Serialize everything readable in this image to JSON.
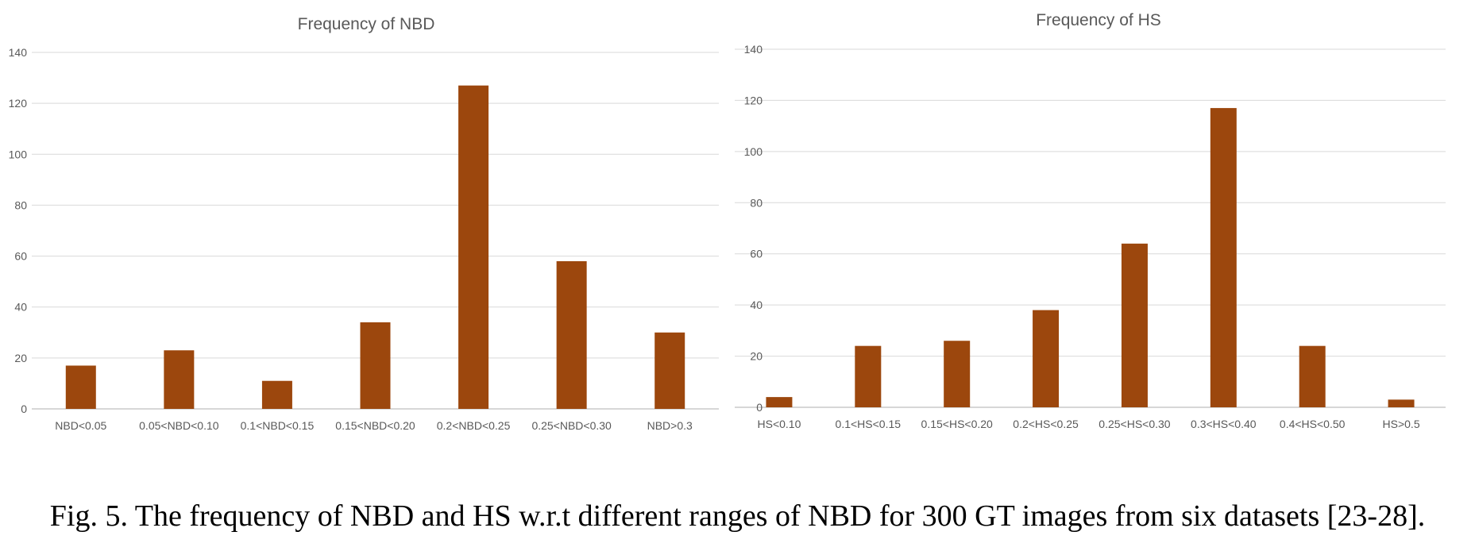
{
  "colors": {
    "bar": "#9C470D",
    "grid": "#d9d9d9",
    "text": "#595959"
  },
  "chart_data": [
    {
      "type": "bar",
      "title": "Frequency of NBD",
      "xlabel": "",
      "ylabel": "",
      "categories": [
        "NBD<0.05",
        "0.05<NBD<0.10",
        "0.1<NBD<0.15",
        "0.15<NBD<0.20",
        "0.2<NBD<0.25",
        "0.25<NBD<0.30",
        "NBD>0.3"
      ],
      "values": [
        17,
        23,
        11,
        34,
        127,
        58,
        30
      ],
      "ylim": [
        0,
        140
      ],
      "yticks": [
        "0",
        "20",
        "40",
        "60",
        "80",
        "100",
        "120",
        "140"
      ],
      "grid": true,
      "legend": "none"
    },
    {
      "type": "bar",
      "title": "Frequency of HS",
      "xlabel": "",
      "ylabel": "",
      "categories": [
        "HS<0.10",
        "0.1<HS<0.15",
        "0.15<HS<0.20",
        "0.2<HS<0.25",
        "0.25<HS<0.30",
        "0.3<HS<0.40",
        "0.4<HS<0.50",
        "HS>0.5"
      ],
      "values": [
        4,
        24,
        26,
        38,
        64,
        117,
        24,
        3
      ],
      "ylim": [
        0,
        140
      ],
      "yticks": [
        "0",
        "20",
        "40",
        "60",
        "80",
        "100",
        "120",
        "140"
      ],
      "grid": true,
      "legend": "none"
    }
  ],
  "caption": "Fig. 5. The frequency of NBD and HS w.r.t different ranges of NBD for 300 GT images from six datasets [23-28]."
}
